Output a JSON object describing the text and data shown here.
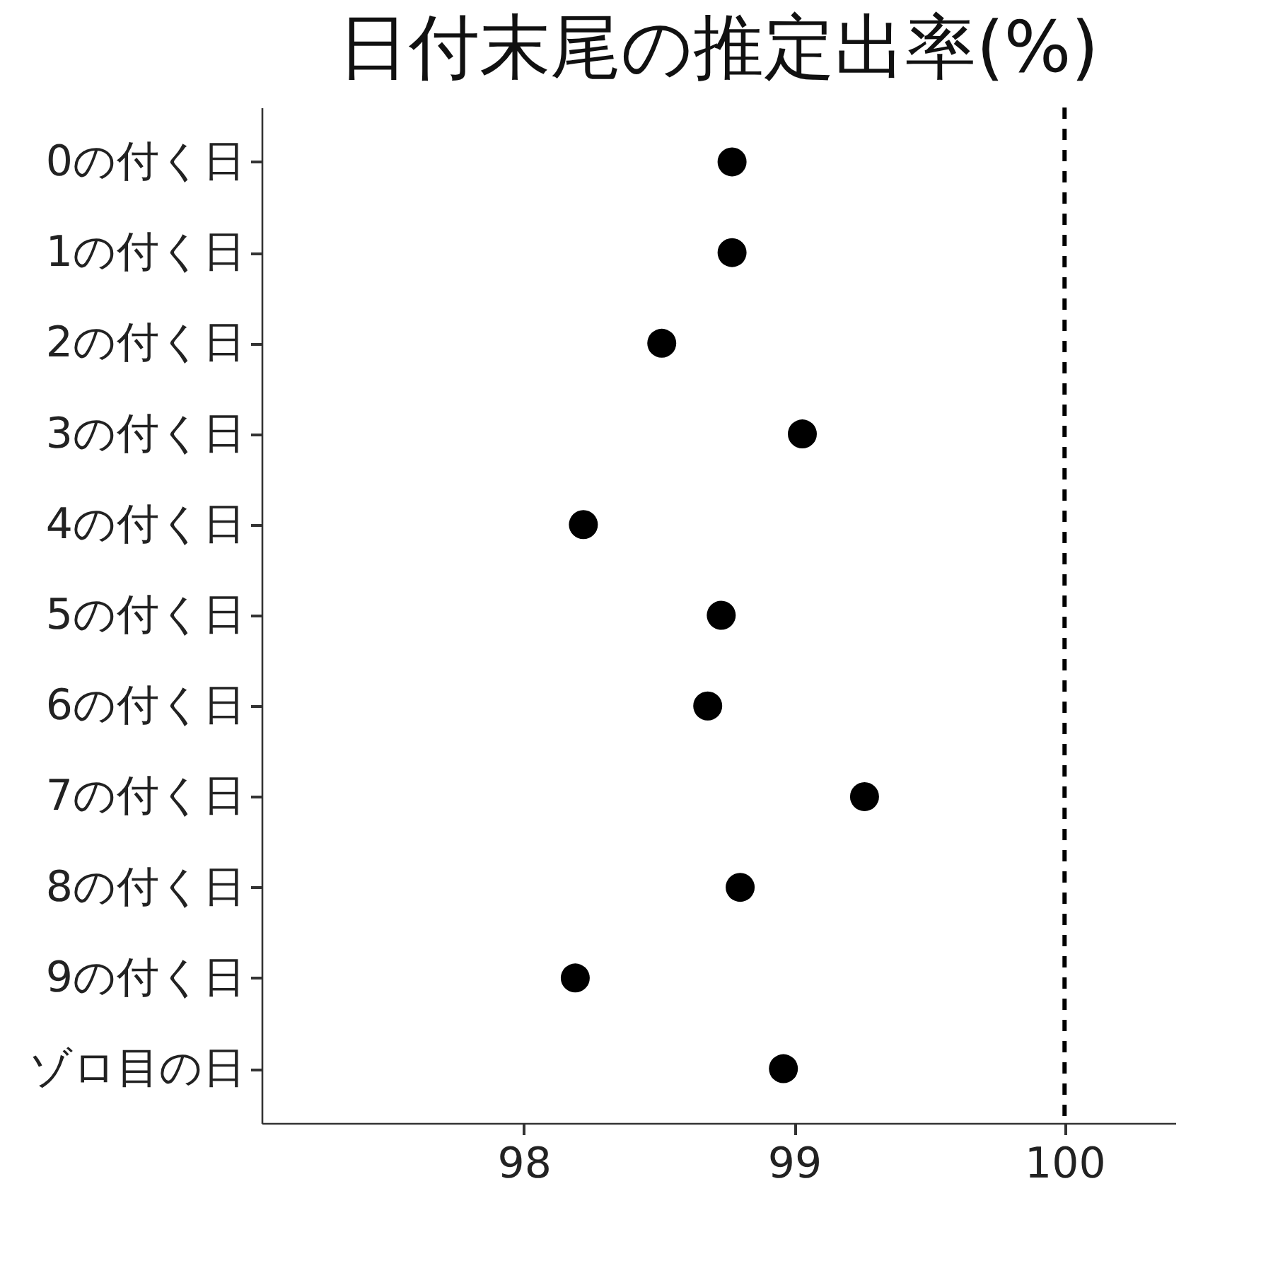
{
  "chart_data": {
    "type": "scatter",
    "title": "日付末尾の推定出率(%)",
    "categories": [
      "0の付く日",
      "1の付く日",
      "2の付く日",
      "3の付く日",
      "4の付く日",
      "5の付く日",
      "6の付く日",
      "7の付く日",
      "8の付く日",
      "9の付く日",
      "ゾロ目の日"
    ],
    "orientation": "horizontal",
    "series": [
      {
        "color": "#000000",
        "values": [
          98.77,
          98.77,
          98.51,
          99.03,
          98.22,
          98.73,
          98.68,
          99.26,
          98.8,
          98.19,
          98.96
        ]
      }
    ],
    "xlim": [
      97.03,
      100.41
    ],
    "xticks": [
      98,
      99,
      100
    ],
    "ref_lines": [
      {
        "axis": "x",
        "value": 100,
        "line_style": "dashed",
        "color": "#000000"
      }
    ],
    "grid": false
  }
}
